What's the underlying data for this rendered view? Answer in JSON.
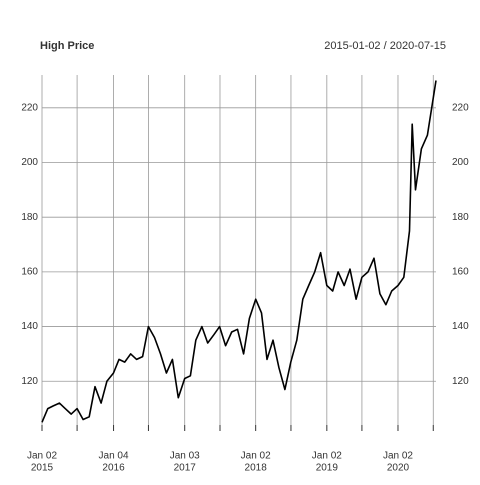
{
  "chart_data": {
    "type": "line",
    "title": "High Price",
    "subtitle": "2015-01-02 / 2020-07-15",
    "x": [
      "2015-01-02",
      "2015-02-01",
      "2015-03-01",
      "2015-04-01",
      "2015-05-01",
      "2015-06-01",
      "2015-07-01",
      "2015-08-01",
      "2015-09-01",
      "2015-10-01",
      "2015-11-01",
      "2015-12-01",
      "2016-01-04",
      "2016-02-01",
      "2016-03-01",
      "2016-04-01",
      "2016-05-01",
      "2016-06-01",
      "2016-07-01",
      "2016-08-01",
      "2016-09-01",
      "2016-10-01",
      "2016-11-01",
      "2016-12-01",
      "2017-01-03",
      "2017-02-01",
      "2017-03-01",
      "2017-04-01",
      "2017-05-01",
      "2017-06-01",
      "2017-07-01",
      "2017-08-01",
      "2017-09-01",
      "2017-10-01",
      "2017-11-01",
      "2017-12-01",
      "2018-01-02",
      "2018-02-01",
      "2018-03-01",
      "2018-04-01",
      "2018-05-01",
      "2018-06-01",
      "2018-07-01",
      "2018-08-01",
      "2018-09-01",
      "2018-10-01",
      "2018-11-01",
      "2018-12-01",
      "2019-01-02",
      "2019-02-01",
      "2019-03-01",
      "2019-04-01",
      "2019-05-01",
      "2019-06-01",
      "2019-07-01",
      "2019-08-01",
      "2019-09-01",
      "2019-10-01",
      "2019-11-01",
      "2019-12-01",
      "2020-01-02",
      "2020-02-01",
      "2020-03-01",
      "2020-03-15",
      "2020-04-01",
      "2020-05-01",
      "2020-06-01",
      "2020-07-15"
    ],
    "series": [
      {
        "name": "High",
        "color": "#000000",
        "values": [
          105,
          110,
          111,
          112,
          110,
          108,
          110,
          106,
          107,
          118,
          112,
          120,
          123,
          128,
          127,
          130,
          128,
          129,
          140,
          136,
          130,
          123,
          128,
          114,
          121,
          122,
          135,
          140,
          134,
          137,
          140,
          133,
          138,
          139,
          130,
          143,
          150,
          145,
          128,
          135,
          125,
          117,
          127,
          135,
          150,
          155,
          160,
          167,
          155,
          153,
          160,
          155,
          161,
          150,
          158,
          160,
          165,
          152,
          148,
          153,
          155,
          158,
          175,
          214,
          190,
          205,
          210,
          230
        ]
      }
    ],
    "xlim": [
      "2015-01-02",
      "2020-07-15"
    ],
    "xticks": [
      {
        "value": "2015-01-02",
        "label": "Jan 02",
        "year": "2015"
      },
      {
        "value": "2015-07-01",
        "label": null
      },
      {
        "value": "2016-01-04",
        "label": "Jan 04",
        "year": "2016"
      },
      {
        "value": "2016-07-01",
        "label": null
      },
      {
        "value": "2017-01-03",
        "label": "Jan 03",
        "year": "2017"
      },
      {
        "value": "2017-07-03",
        "label": null
      },
      {
        "value": "2018-01-02",
        "label": "Jan 02",
        "year": "2018"
      },
      {
        "value": "2018-07-02",
        "label": null
      },
      {
        "value": "2019-01-02",
        "label": "Jan 02",
        "year": "2019"
      },
      {
        "value": "2019-07-01",
        "label": null
      },
      {
        "value": "2020-01-02",
        "label": "Jan 02",
        "year": "2020"
      },
      {
        "value": "2020-07-01",
        "label": null
      }
    ],
    "ylim": [
      104,
      232
    ],
    "yticks": [
      120,
      140,
      160,
      180,
      200,
      220
    ],
    "grid": true
  }
}
